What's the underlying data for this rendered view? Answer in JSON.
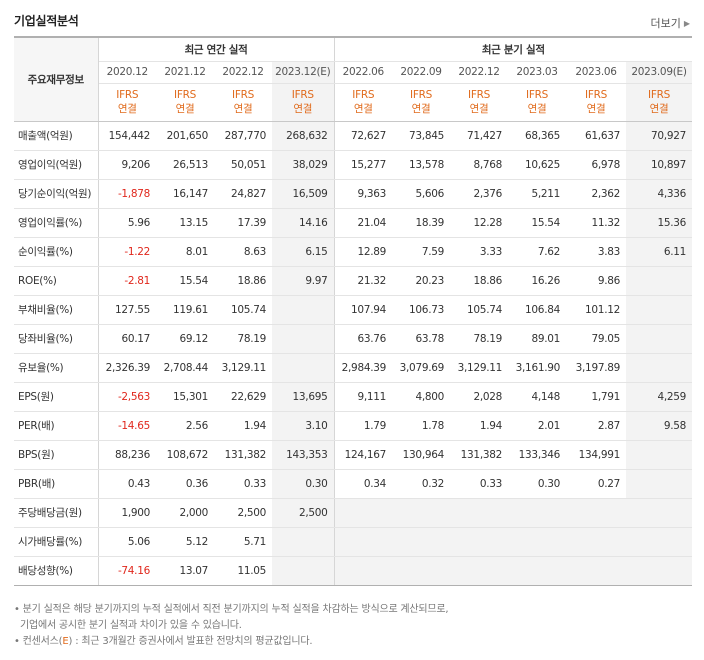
{
  "header": {
    "title": "기업실적분석",
    "more_label": "더보기"
  },
  "table": {
    "corner_label": "주요재무정보",
    "group_annual": "최근 연간 실적",
    "group_quarter": "최근 분기 실적",
    "periods": [
      "2020.12",
      "2021.12",
      "2022.12",
      "2023.12(E)",
      "2022.06",
      "2022.09",
      "2022.12",
      "2023.03",
      "2023.06",
      "2023.09(E)"
    ],
    "ifrs_line1": "IFRS",
    "ifrs_line2": "연결",
    "rows": [
      {
        "label": "매출액(억원)",
        "values": [
          "154,442",
          "201,650",
          "287,770",
          "268,632",
          "72,627",
          "73,845",
          "71,427",
          "68,365",
          "61,637",
          "70,927"
        ]
      },
      {
        "label": "영업이익(억원)",
        "values": [
          "9,206",
          "26,513",
          "50,051",
          "38,029",
          "15,277",
          "13,578",
          "8,768",
          "10,625",
          "6,978",
          "10,897"
        ]
      },
      {
        "label": "당기순이익(억원)",
        "values": [
          "-1,878",
          "16,147",
          "24,827",
          "16,509",
          "9,363",
          "5,606",
          "2,376",
          "5,211",
          "2,362",
          "4,336"
        ]
      },
      {
        "label": "영업이익률(%)",
        "values": [
          "5.96",
          "13.15",
          "17.39",
          "14.16",
          "21.04",
          "18.39",
          "12.28",
          "15.54",
          "11.32",
          "15.36"
        ]
      },
      {
        "label": "순이익률(%)",
        "values": [
          "-1.22",
          "8.01",
          "8.63",
          "6.15",
          "12.89",
          "7.59",
          "3.33",
          "7.62",
          "3.83",
          "6.11"
        ]
      },
      {
        "label": "ROE(%)",
        "values": [
          "-2.81",
          "15.54",
          "18.86",
          "9.97",
          "21.32",
          "20.23",
          "18.86",
          "16.26",
          "9.86",
          ""
        ]
      },
      {
        "label": "부채비율(%)",
        "values": [
          "127.55",
          "119.61",
          "105.74",
          "",
          "107.94",
          "106.73",
          "105.74",
          "106.84",
          "101.12",
          ""
        ]
      },
      {
        "label": "당좌비율(%)",
        "values": [
          "60.17",
          "69.12",
          "78.19",
          "",
          "63.76",
          "63.78",
          "78.19",
          "89.01",
          "79.05",
          ""
        ]
      },
      {
        "label": "유보율(%)",
        "values": [
          "2,326.39",
          "2,708.44",
          "3,129.11",
          "",
          "2,984.39",
          "3,079.69",
          "3,129.11",
          "3,161.90",
          "3,197.89",
          ""
        ]
      },
      {
        "label": "EPS(원)",
        "values": [
          "-2,563",
          "15,301",
          "22,629",
          "13,695",
          "9,111",
          "4,800",
          "2,028",
          "4,148",
          "1,791",
          "4,259"
        ]
      },
      {
        "label": "PER(배)",
        "values": [
          "-14.65",
          "2.56",
          "1.94",
          "3.10",
          "1.79",
          "1.78",
          "1.94",
          "2.01",
          "2.87",
          "9.58"
        ]
      },
      {
        "label": "BPS(원)",
        "values": [
          "88,236",
          "108,672",
          "131,382",
          "143,353",
          "124,167",
          "130,964",
          "131,382",
          "133,346",
          "134,991",
          ""
        ]
      },
      {
        "label": "PBR(배)",
        "values": [
          "0.43",
          "0.36",
          "0.33",
          "0.30",
          "0.34",
          "0.32",
          "0.33",
          "0.30",
          "0.27",
          ""
        ]
      },
      {
        "label": "주당배당금(원)",
        "values": [
          "1,900",
          "2,000",
          "2,500",
          "2,500",
          "",
          "",
          "",
          "",
          "",
          ""
        ]
      },
      {
        "label": "시가배당률(%)",
        "values": [
          "5.06",
          "5.12",
          "5.71",
          "",
          "",
          "",
          "",
          "",
          "",
          ""
        ]
      },
      {
        "label": "배당성향(%)",
        "values": [
          "-74.16",
          "13.07",
          "11.05",
          "",
          "",
          "",
          "",
          "",
          "",
          ""
        ]
      }
    ]
  },
  "notes": {
    "line1": "• 분기 실적은 해당 분기까지의 누적 실적에서 직전 분기까지의 누적 실적을 차감하는 방식으로 계산되므로,",
    "line2": "  기업에서 공시한 분기 실적과 차이가 있을 수 있습니다.",
    "line3_prefix": "• 컨센서스(",
    "line3_e": "E",
    "line3_suffix": ") : 최근 3개월간 증권사에서 발표한 전망치의 평균값입니다."
  }
}
